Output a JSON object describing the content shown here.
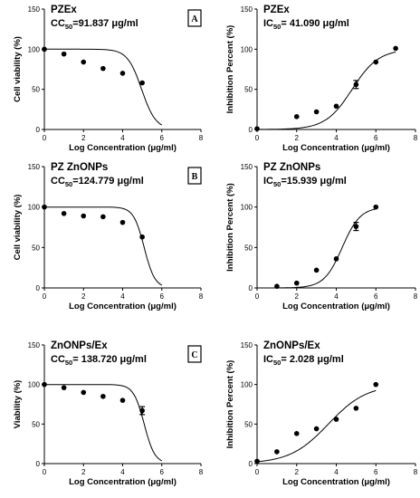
{
  "chart_data": [
    {
      "type": "scatter",
      "row": 0,
      "col": 0,
      "name": "PZEx",
      "metric_symbol": "CC",
      "metric_sub": "50",
      "metric_value": "=91.837 μg/ml",
      "badge": "A",
      "xlabel": "Log Concentration (μg/ml)",
      "ylabel": "Cell viability (%)",
      "xlim": [
        0,
        8
      ],
      "ylim": [
        0,
        150
      ],
      "xticks": [
        0,
        2,
        4,
        6,
        8
      ],
      "yticks": [
        0,
        50,
        100,
        150
      ],
      "points": [
        {
          "x": 0,
          "y": 100
        },
        {
          "x": 1,
          "y": 94
        },
        {
          "x": 2,
          "y": 84
        },
        {
          "x": 3,
          "y": 76
        },
        {
          "x": 4,
          "y": 70
        },
        {
          "x": 5,
          "y": 58
        }
      ],
      "curve": {
        "model": "decreasing",
        "top": 100,
        "bottom": 0,
        "logx50": 4.97,
        "hill": 1.2,
        "xrange": [
          0,
          6
        ]
      }
    },
    {
      "type": "scatter",
      "row": 0,
      "col": 1,
      "name": "PZEx",
      "metric_symbol": "IC",
      "metric_sub": "50",
      "metric_value": "= 41.090 μg/ml",
      "badge": "",
      "xlabel": "Log Concentration (μg/ml)",
      "ylabel": "Inhibition Percent (%)",
      "xlim": [
        0,
        8
      ],
      "ylim": [
        0,
        150
      ],
      "xticks": [
        0,
        2,
        4,
        6,
        8
      ],
      "yticks": [
        0,
        50,
        100,
        150
      ],
      "points": [
        {
          "x": 0,
          "y": 1
        },
        {
          "x": 2,
          "y": 16
        },
        {
          "x": 3,
          "y": 22
        },
        {
          "x": 4,
          "y": 29
        },
        {
          "x": 5,
          "y": 56,
          "err": 5
        },
        {
          "x": 6,
          "y": 84
        },
        {
          "x": 7,
          "y": 101
        }
      ],
      "curve": {
        "model": "increasing",
        "top": 100,
        "bottom": 0,
        "logx50": 4.8,
        "hill": 0.65,
        "xrange": [
          0,
          7
        ]
      }
    },
    {
      "type": "scatter",
      "row": 1,
      "col": 0,
      "name": "PZ ZnONPs",
      "metric_symbol": "CC",
      "metric_sub": "50",
      "metric_value": "=124.779 μg/ml",
      "badge": "B",
      "xlabel": "Log Concentration (μg/ml)",
      "ylabel": "Cell viability (%)",
      "xlim": [
        0,
        8
      ],
      "ylim": [
        0,
        150
      ],
      "xticks": [
        0,
        2,
        4,
        6,
        8
      ],
      "yticks": [
        0,
        50,
        100,
        150
      ],
      "points": [
        {
          "x": 0,
          "y": 100
        },
        {
          "x": 1,
          "y": 92
        },
        {
          "x": 2,
          "y": 89
        },
        {
          "x": 3,
          "y": 88
        },
        {
          "x": 4,
          "y": 81
        },
        {
          "x": 5,
          "y": 63
        }
      ],
      "curve": {
        "model": "decreasing",
        "top": 100,
        "bottom": 0,
        "logx50": 5.1,
        "hill": 1.6,
        "xrange": [
          0,
          6
        ]
      }
    },
    {
      "type": "scatter",
      "row": 1,
      "col": 1,
      "name": "PZ ZnONPs",
      "metric_symbol": "IC",
      "metric_sub": "50",
      "metric_value": "=15.939 μg/ml",
      "badge": "",
      "xlabel": "Log Concentration (μg/ml)",
      "ylabel": "Inhibition Percent (%)",
      "xlim": [
        0,
        8
      ],
      "ylim": [
        0,
        150
      ],
      "xticks": [
        0,
        2,
        4,
        6,
        8
      ],
      "yticks": [
        0,
        50,
        100,
        150
      ],
      "points": [
        {
          "x": 1,
          "y": 2
        },
        {
          "x": 2,
          "y": 6
        },
        {
          "x": 3,
          "y": 22
        },
        {
          "x": 4,
          "y": 36
        },
        {
          "x": 5,
          "y": 76,
          "err": 5
        },
        {
          "x": 6,
          "y": 100
        }
      ],
      "curve": {
        "model": "increasing",
        "top": 100,
        "bottom": 0,
        "logx50": 4.3,
        "hill": 0.95,
        "xrange": [
          1,
          6
        ]
      }
    },
    {
      "type": "scatter",
      "row": 2,
      "col": 0,
      "name": "ZnONPs/Ex",
      "metric_symbol": "CC",
      "metric_sub": "50",
      "metric_value": "= 138.720 μg/ml",
      "badge": "C",
      "xlabel": "Log Concentration (μg/ml)",
      "ylabel": "Viability (%)",
      "xlim": [
        0,
        8
      ],
      "ylim": [
        0,
        150
      ],
      "xticks": [
        0,
        2,
        4,
        6,
        8
      ],
      "yticks": [
        0,
        50,
        100,
        150
      ],
      "points": [
        {
          "x": 0,
          "y": 100
        },
        {
          "x": 1,
          "y": 96
        },
        {
          "x": 2,
          "y": 90
        },
        {
          "x": 3,
          "y": 85
        },
        {
          "x": 4,
          "y": 80
        },
        {
          "x": 5,
          "y": 67,
          "err": 5
        }
      ],
      "curve": {
        "model": "decreasing",
        "top": 100,
        "bottom": 0,
        "logx50": 5.1,
        "hill": 1.6,
        "xrange": [
          0,
          6
        ]
      }
    },
    {
      "type": "scatter",
      "row": 2,
      "col": 1,
      "name": "ZnONPs/Ex",
      "metric_symbol": "IC",
      "metric_sub": "50",
      "metric_value": "= 2.028 μg/ml",
      "badge": "",
      "xlabel": "Log Concentration (μg/ml)",
      "ylabel": "Inhibition Percent (%)",
      "xlim": [
        0,
        8
      ],
      "ylim": [
        0,
        150
      ],
      "xticks": [
        0,
        2,
        4,
        6,
        8
      ],
      "yticks": [
        0,
        50,
        100,
        150
      ],
      "points": [
        {
          "x": 0,
          "y": 3
        },
        {
          "x": 1,
          "y": 15
        },
        {
          "x": 2,
          "y": 38
        },
        {
          "x": 3,
          "y": 44
        },
        {
          "x": 4,
          "y": 56
        },
        {
          "x": 5,
          "y": 70
        },
        {
          "x": 6,
          "y": 100
        }
      ],
      "curve": {
        "model": "increasing",
        "top": 100,
        "bottom": 0,
        "logx50": 3.6,
        "hill": 0.45,
        "xrange": [
          0,
          6
        ]
      }
    }
  ]
}
